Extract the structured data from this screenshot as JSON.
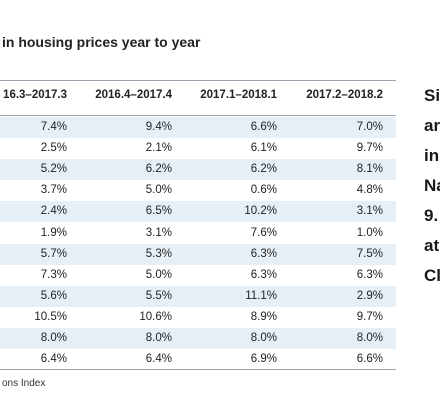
{
  "title": "in housing prices year to year",
  "table": {
    "columns": [
      "16.3–2017.3",
      "2016.4–2017.4",
      "2017.1–2018.1",
      "2017.2–2018.2"
    ],
    "rows": [
      [
        "7.4%",
        "9.4%",
        "6.6%",
        "7.0%"
      ],
      [
        "2.5%",
        "2.1%",
        "6.1%",
        "9.7%"
      ],
      [
        "5.2%",
        "6.2%",
        "6.2%",
        "8.1%"
      ],
      [
        "3.7%",
        "5.0%",
        "0.6%",
        "4.8%"
      ],
      [
        "2.4%",
        "6.5%",
        "10.2%",
        "3.1%"
      ],
      [
        "1.9%",
        "3.1%",
        "7.6%",
        "1.0%"
      ],
      [
        "5.7%",
        "5.3%",
        "6.3%",
        "7.5%"
      ],
      [
        "7.3%",
        "5.0%",
        "6.3%",
        "6.3%"
      ],
      [
        "5.6%",
        "5.5%",
        "11.1%",
        "2.9%"
      ],
      [
        "10.5%",
        "10.6%",
        "8.9%",
        "9.7%"
      ],
      [
        "8.0%",
        "8.0%",
        "8.0%",
        "8.0%"
      ],
      [
        "6.4%",
        "6.4%",
        "6.9%",
        "6.6%"
      ]
    ]
  },
  "side_text": [
    "Si",
    "ar",
    "in",
    "Na",
    "9.",
    "at",
    "Cl"
  ],
  "footer": "ons Index"
}
